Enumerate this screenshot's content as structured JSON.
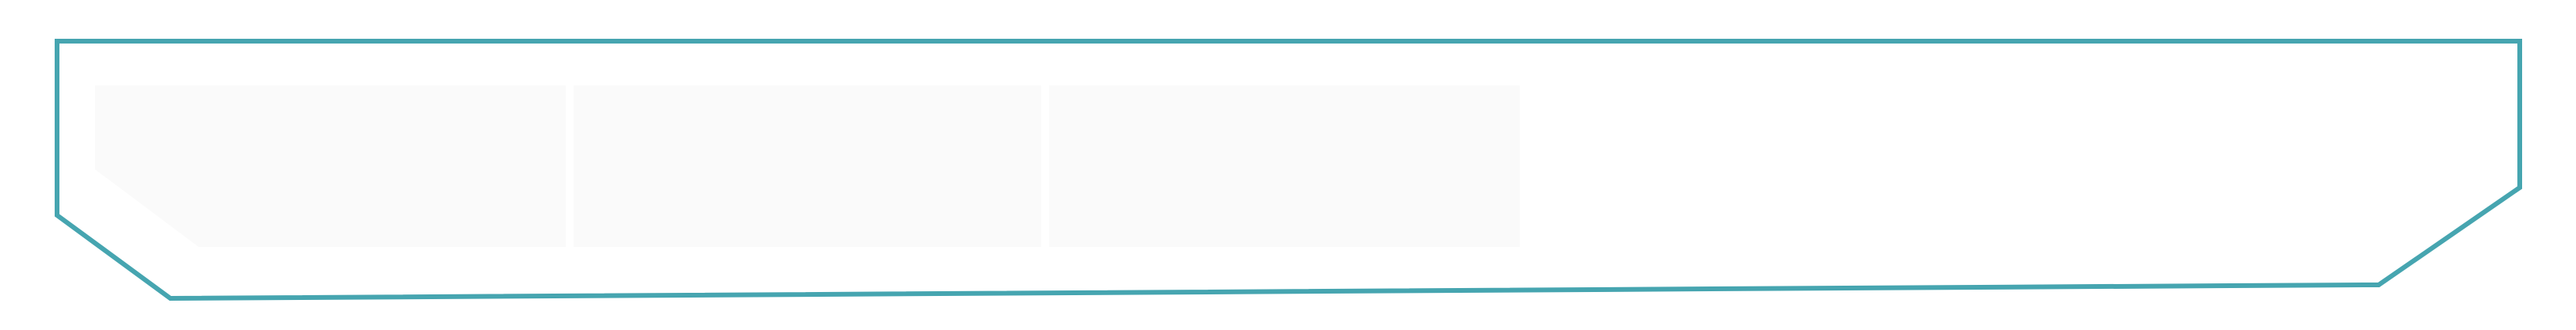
{
  "frame": {
    "border_color": "#46a5b0",
    "background": "#ffffff"
  },
  "panels": [
    {
      "fill": "#fafafa"
    },
    {
      "fill": "#fafafa"
    },
    {
      "fill": "#fafafa"
    }
  ]
}
